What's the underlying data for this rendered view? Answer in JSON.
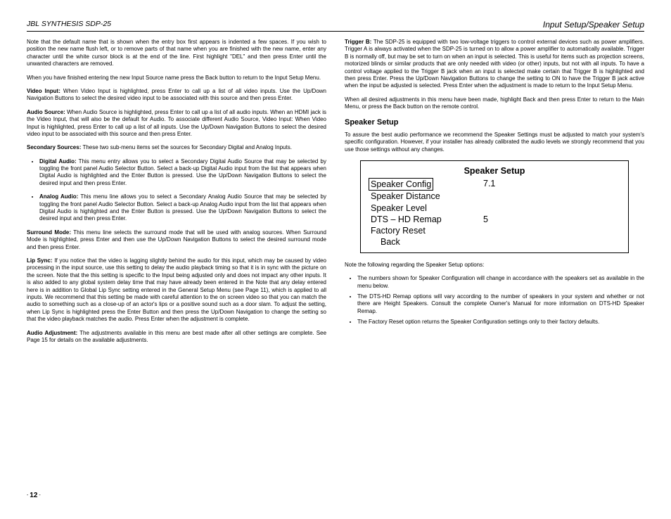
{
  "header": {
    "left": "JBL SYNTHESIS SDP-25",
    "right": "Input Setup/Speaker Setup"
  },
  "left_col": {
    "p1": "Note that the default name that is shown when the entry box first appears is indented a few spaces. If you wish to position the new name flush left, or to remove parts of that name when you are finished with the new name, enter any character until the white cursor block is at the end of the line. First highlight \"DEL\" and then press Enter until the unwanted characters are removed.",
    "p2": "When you have finished entering the new Input Source name press the Back button to return to the Input Setup Menu.",
    "video_label": "Video Input:",
    "video_text": " When Video Input is highlighted, press Enter to call up a list of all video inputs. Use the Up/Down Navigation Buttons to select the desired video input to be associated with this source and then press Enter.",
    "audio_label": "Audio Source:",
    "audio_text": " When Audio Source is highlighted, press Enter to call up a list of all audio inputs. When an HDMI jack is the Video Input, that will also be the default for Audio. To associate different Audio Source, Video Input: When Video Input is highlighted, press Enter to call up a list of all inputs. Use the Up/Down Navigation Buttons to select the desired video input to be associated with this source and then press Enter.",
    "secondary_label": "Secondary Sources:",
    "secondary_text": " These two sub-menu items set the sources for Secondary Digital and Analog Inputs.",
    "digital_label": "Digital Audio:",
    "digital_text": " This menu entry allows you to select a Secondary Digital Audio Source that may be selected by toggling the front panel Audio Selector Button. Select a back-up Digital Audio input from the list that appears when Digital Audio is highlighted and the Enter Button is pressed. Use the Up/Down Navigation Buttons to select the desired input and then press Enter.",
    "analog_label": "Analog Audio:",
    "analog_text": " This menu line allows you to select a Secondary Analog Audio Source that may be selected by toggling the front panel Audio Selector Button. Select a back-up Analog Audio input from the list that appears when Digital Audio is highlighted and the Enter Button is pressed. Use the Up/Down Navigation Buttons to select the desired input and then press Enter.",
    "surround_label": "Surround Mode:",
    "surround_text": " This menu line selects the surround mode that will be used with analog sources. When Surround Mode is highlighted, press Enter and then use the Up/Down Navigation Buttons to select the desired surround mode and then press Enter.",
    "lip_label": "Lip Sync:",
    "lip_text": " If you notice that the video is lagging slightly behind the audio for this input, which may be caused by video processing in the input source, use this setting to delay the audio playback timing so that it is in sync with the picture on the screen. Note that the this setting is specific to the Input being adjusted only and does not impact any other inputs. It is also added to any global system delay time that may have already been entered in the Note that any delay entered here is in addition to Global Lip Sync setting entered in the General Setup Menu (see Page 11), which is applied to all inputs. We recommend that this setting be made with careful attention to the on screen video so that you can match the audio to something such as a close-up of an actor's lips or a positive sound such as a door slam. To adjust the setting, when Lip Sync is highlighted press the Enter Button and then press the Up/Down Navigation to change the setting so that the video playback matches the audio. Press Enter when the adjustment is complete.",
    "adj_label": "Audio Adjustment:",
    "adj_text": " The adjustments available in this menu are best made after all other settings are complete. See Page 15 for details on the available adjustments."
  },
  "right_col": {
    "trigger_label": "Trigger B:",
    "trigger_text": " The SDP-25 is equipped with two low-voltage triggers to control external devices such as power amplifiers. Trigger A is always activated when the SDP-25 is turned on to allow a power amplifier to automatically available. Trigger B is normally off, but may be set to turn on when an input is selected. This is useful for items such as projection screens, motorized blinds or similar products that are only needed with video (or other) inputs, but not with all inputs. To have a control voltage applied to the Trigger B jack when an input is selected make certain that Trigger B is highlighted and then press Enter. Press the Up/Down Navigation Buttons to change the setting to ON to have the Trigger B jack active when the input be adjusted is selected. Press Enter when the adjustment is made to return to the Input Setup Menu.",
    "p_return": "When all desired adjustments in this menu have been made, highlight Back and then press Enter to return to the Main Menu, or press the Back button on the remote control.",
    "heading": "Speaker Setup",
    "p_intro": "To assure the best audio performance we recommend the Speaker Settings must be adjusted to match your system's specific configuration. However, if your installer has already calibrated the audio levels we strongly recommend that you use those settings without any changes.",
    "menu": {
      "title": "Speaker Setup",
      "rows": [
        {
          "label": "Speaker Config",
          "val": "7.1",
          "highlight": true
        },
        {
          "label": "Speaker Distance",
          "val": ""
        },
        {
          "label": "Speaker Level",
          "val": ""
        },
        {
          "label": "DTS – HD Remap",
          "val": "5"
        },
        {
          "label": "Factory Reset",
          "val": ""
        },
        {
          "label": "Back",
          "val": "",
          "indent": true
        }
      ]
    },
    "note_heading": "Note the following regarding the Speaker Setup options:",
    "notes": [
      "The numbers shown for Speaker Configuration will change in accordance with the speakers set as available in the menu below.",
      "The DTS-HD Remap options will vary according to the number of speakers in your system and whether or not there are Height Speakers. Consult the complete Owner's Manual for more information on DTS-HD Speaker Remap.",
      "The Factory Reset option returns the Speaker Configuration settings only to their factory defaults."
    ]
  },
  "page_number": "12"
}
